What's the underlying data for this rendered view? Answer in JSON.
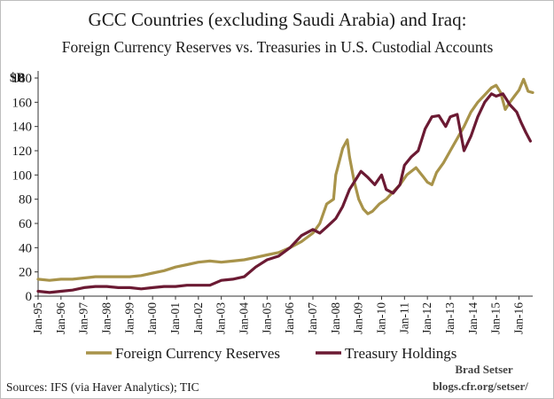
{
  "chart_data": {
    "type": "line",
    "title": "GCC Countries (excluding Saudi Arabia) and Iraq:",
    "subtitle": "Foreign Currency Reserves vs. Treasuries in U.S. Custodial Accounts",
    "ylabel": "$B",
    "ylim": [
      0,
      180
    ],
    "yticks": [
      0,
      20,
      40,
      60,
      80,
      100,
      120,
      140,
      160,
      180
    ],
    "xlim": [
      1995,
      2016.6
    ],
    "xticks": [
      "Jan-95",
      "Jan-96",
      "Jan-97",
      "Jan-98",
      "Jan-99",
      "Jan-00",
      "Jan-01",
      "Jan-02",
      "Jan-03",
      "Jan-04",
      "Jan-05",
      "Jan-06",
      "Jan-07",
      "Jan-08",
      "Jan-09",
      "Jan-10",
      "Jan-11",
      "Jan-12",
      "Jan-13",
      "Jan-14",
      "Jan-15",
      "Jan-16"
    ],
    "grid": false,
    "legend_position": "bottom",
    "series": [
      {
        "name": "Foreign Currency Reserves",
        "color": "#a8934a",
        "points": [
          [
            1995.0,
            14
          ],
          [
            1995.5,
            13
          ],
          [
            1996.0,
            14
          ],
          [
            1996.5,
            14
          ],
          [
            1997.0,
            15
          ],
          [
            1997.5,
            16
          ],
          [
            1998.0,
            16
          ],
          [
            1998.5,
            16
          ],
          [
            1999.0,
            16
          ],
          [
            1999.5,
            17
          ],
          [
            2000.0,
            19
          ],
          [
            2000.5,
            21
          ],
          [
            2001.0,
            24
          ],
          [
            2001.5,
            26
          ],
          [
            2002.0,
            28
          ],
          [
            2002.5,
            29
          ],
          [
            2003.0,
            28
          ],
          [
            2003.5,
            29
          ],
          [
            2004.0,
            30
          ],
          [
            2004.5,
            32
          ],
          [
            2005.0,
            34
          ],
          [
            2005.5,
            36
          ],
          [
            2006.0,
            40
          ],
          [
            2006.5,
            45
          ],
          [
            2007.0,
            52
          ],
          [
            2007.3,
            60
          ],
          [
            2007.6,
            76
          ],
          [
            2007.9,
            80
          ],
          [
            2008.0,
            100
          ],
          [
            2008.3,
            122
          ],
          [
            2008.5,
            129
          ],
          [
            2008.6,
            115
          ],
          [
            2008.8,
            95
          ],
          [
            2009.0,
            80
          ],
          [
            2009.2,
            72
          ],
          [
            2009.4,
            68
          ],
          [
            2009.6,
            70
          ],
          [
            2009.9,
            76
          ],
          [
            2010.2,
            80
          ],
          [
            2010.5,
            86
          ],
          [
            2010.8,
            92
          ],
          [
            2011.1,
            100
          ],
          [
            2011.5,
            106
          ],
          [
            2011.8,
            99
          ],
          [
            2012.0,
            94
          ],
          [
            2012.2,
            92
          ],
          [
            2012.4,
            102
          ],
          [
            2012.7,
            110
          ],
          [
            2013.0,
            120
          ],
          [
            2013.3,
            130
          ],
          [
            2013.6,
            140
          ],
          [
            2013.9,
            152
          ],
          [
            2014.2,
            160
          ],
          [
            2014.5,
            166
          ],
          [
            2014.8,
            172
          ],
          [
            2015.0,
            174
          ],
          [
            2015.2,
            168
          ],
          [
            2015.4,
            154
          ],
          [
            2015.6,
            160
          ],
          [
            2015.8,
            165
          ],
          [
            2016.0,
            170
          ],
          [
            2016.2,
            179
          ],
          [
            2016.4,
            169
          ],
          [
            2016.6,
            168
          ]
        ]
      },
      {
        "name": "Treasury Holdings",
        "color": "#6b1a33",
        "points": [
          [
            1995.0,
            4
          ],
          [
            1995.5,
            3
          ],
          [
            1996.0,
            4
          ],
          [
            1996.5,
            5
          ],
          [
            1997.0,
            7
          ],
          [
            1997.5,
            8
          ],
          [
            1998.0,
            8
          ],
          [
            1998.5,
            7
          ],
          [
            1999.0,
            7
          ],
          [
            1999.5,
            6
          ],
          [
            2000.0,
            7
          ],
          [
            2000.5,
            8
          ],
          [
            2001.0,
            8
          ],
          [
            2001.5,
            9
          ],
          [
            2002.0,
            9
          ],
          [
            2002.5,
            9
          ],
          [
            2003.0,
            13
          ],
          [
            2003.5,
            14
          ],
          [
            2004.0,
            16
          ],
          [
            2004.5,
            24
          ],
          [
            2005.0,
            30
          ],
          [
            2005.5,
            33
          ],
          [
            2006.0,
            40
          ],
          [
            2006.5,
            50
          ],
          [
            2007.0,
            55
          ],
          [
            2007.3,
            52
          ],
          [
            2007.6,
            57
          ],
          [
            2008.0,
            64
          ],
          [
            2008.3,
            74
          ],
          [
            2008.6,
            88
          ],
          [
            2008.9,
            97
          ],
          [
            2009.1,
            103
          ],
          [
            2009.4,
            98
          ],
          [
            2009.7,
            92
          ],
          [
            2010.0,
            100
          ],
          [
            2010.2,
            88
          ],
          [
            2010.5,
            85
          ],
          [
            2010.8,
            92
          ],
          [
            2011.0,
            108
          ],
          [
            2011.3,
            115
          ],
          [
            2011.6,
            120
          ],
          [
            2011.9,
            138
          ],
          [
            2012.2,
            148
          ],
          [
            2012.5,
            149
          ],
          [
            2012.8,
            140
          ],
          [
            2013.0,
            148
          ],
          [
            2013.3,
            150
          ],
          [
            2013.6,
            120
          ],
          [
            2013.9,
            132
          ],
          [
            2014.2,
            148
          ],
          [
            2014.5,
            160
          ],
          [
            2014.8,
            167
          ],
          [
            2015.0,
            165
          ],
          [
            2015.3,
            167
          ],
          [
            2015.6,
            158
          ],
          [
            2015.9,
            152
          ],
          [
            2016.1,
            143
          ],
          [
            2016.3,
            135
          ],
          [
            2016.5,
            128
          ]
        ]
      }
    ]
  },
  "credit": {
    "author": "Brad Setser",
    "site": "blogs.cfr.org/setser/"
  },
  "source": "Sources: IFS (via Haver Analytics); TIC"
}
